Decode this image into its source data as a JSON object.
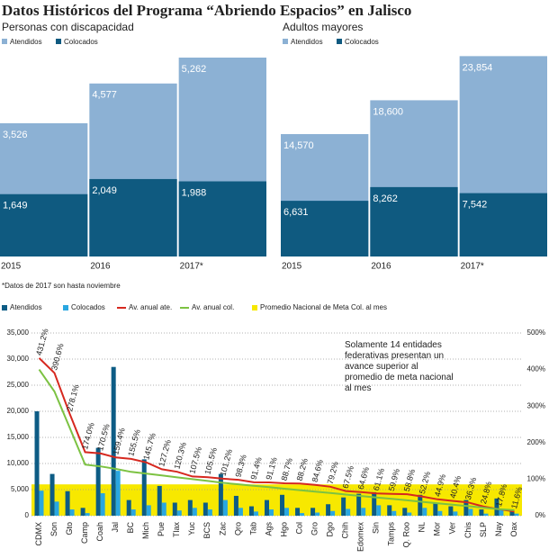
{
  "title": "Datos Históricos del Programa “Abriendo Espacios” en Jalisco",
  "footnote": "*Datos de 2017 son hasta noviembre",
  "chart_data": [
    {
      "type": "bar",
      "title": "Personas con discapacidad",
      "categories": [
        "2015",
        "2016",
        "2017*"
      ],
      "series": [
        {
          "name": "Atendidos",
          "color": "#8cb1d4",
          "values": [
            3526,
            4577,
            5262
          ],
          "value_labels": [
            "3,526",
            "4,577",
            "5,262"
          ]
        },
        {
          "name": "Colocados",
          "color": "#0f5a80",
          "values": [
            1649,
            2049,
            1988
          ],
          "value_labels": [
            "1,649",
            "2,049",
            "1,988"
          ]
        }
      ],
      "ylim": [
        0,
        6000
      ]
    },
    {
      "type": "bar",
      "title": "Adultos mayores",
      "categories": [
        "2015",
        "2016",
        "2017*"
      ],
      "series": [
        {
          "name": "Atendidos",
          "color": "#8cb1d4",
          "values": [
            14570,
            18600,
            23854
          ],
          "value_labels": [
            "14,570",
            "18,600",
            "23,854"
          ]
        },
        {
          "name": "Colocados",
          "color": "#0f5a80",
          "values": [
            6631,
            8262,
            7542
          ],
          "value_labels": [
            "6,631",
            "8,262",
            "7,542"
          ]
        }
      ],
      "ylim": [
        0,
        27000
      ]
    },
    {
      "type": "combo",
      "categories": [
        "CDMX",
        "Son",
        "Gto",
        "Camp",
        "Coah",
        "Jal",
        "BC",
        "Mich",
        "Pue",
        "Tlax",
        "Yuc",
        "BCS",
        "Zac",
        "Qro",
        "Tab",
        "Ags",
        "Hgo",
        "Col",
        "Gro",
        "Dgo",
        "Chih",
        "Edomex",
        "Sin",
        "Tamps",
        "Q. Roo",
        "NL",
        "Mor",
        "Ver",
        "Chis",
        "SLP",
        "Nay",
        "Oax"
      ],
      "series": [
        {
          "name": "Atendidos",
          "color": "#0d5c85",
          "values": [
            20000,
            8000,
            4700,
            1500,
            13000,
            28500,
            3000,
            10800,
            5700,
            2500,
            3000,
            2500,
            8000,
            3800,
            1800,
            3000,
            4000,
            1500,
            1500,
            2200,
            3500,
            4200,
            4500,
            2000,
            1500,
            4000,
            2500,
            1800,
            3000,
            1200,
            3300,
            1200
          ]
        },
        {
          "name": "Colocados",
          "color": "#2aa7e0",
          "values": [
            4800,
            2700,
            1200,
            500,
            4300,
            8600,
            1200,
            2000,
            2500,
            1000,
            1500,
            1200,
            3000,
            1500,
            800,
            1200,
            1500,
            500,
            600,
            900,
            1300,
            1500,
            2000,
            900,
            600,
            1500,
            900,
            800,
            1300,
            400,
            1300,
            400
          ]
        },
        {
          "name": "Av. anual ate.",
          "color": "#d6281f",
          "axis": "y2",
          "values": [
            431.2,
            390.6,
            278.1,
            174.0,
            170.5,
            159.4,
            155.5,
            145.7,
            127.2,
            120.3,
            107.5,
            105.5,
            101.2,
            98.3,
            91.4,
            91.1,
            88.7,
            88.2,
            84.6,
            79.2,
            67.5,
            64.6,
            61.1,
            59.9,
            58.8,
            52.2,
            44.9,
            40.4,
            36.3,
            24.8,
            17.8,
            11.6
          ],
          "value_labels": [
            "431.2%",
            "390.6%",
            "278.1%",
            "174.0%",
            "170.5%",
            "159.4%",
            "155.5%",
            "145.7%",
            "127.2%",
            "120.3%",
            "107.5%",
            "105.5%",
            "101.2%",
            "98.3%",
            "91.4%",
            "91.1%",
            "88.7%",
            "88.2%",
            "84.6%",
            "79.2%",
            "67.5%",
            "64.6%",
            "61.1%",
            "59.9%",
            "58.8%",
            "52.2%",
            "44.9%",
            "40.4%",
            "36.3%",
            "24.8%",
            "17.8%",
            "11.6%"
          ]
        },
        {
          "name": "Av. anual col.",
          "color": "#7cc242",
          "axis": "y2",
          "values": [
            400,
            340,
            240,
            140,
            135,
            128,
            120,
            115,
            110,
            105,
            100,
            95,
            90,
            86,
            82,
            78,
            74,
            70,
            66,
            62,
            58,
            54,
            50,
            46,
            42,
            38,
            34,
            30,
            26,
            22,
            18,
            15
          ]
        }
      ],
      "band": {
        "name": "Promedio Nacional de Meta Col. al mes",
        "color": "#f7e800",
        "value": 6000
      },
      "annotation": "Solamente 14 entidades federativas presentan un avance superior al promedio de meta nacional al mes",
      "ylim": [
        0,
        35000
      ],
      "yticks": [
        0,
        {
          "value": 5000,
          "label": "5,000"
        },
        {
          "value": 10000,
          "label": "10,000"
        },
        {
          "value": 15000,
          "label": "15,000"
        },
        {
          "value": 20000,
          "label": "20,000"
        },
        {
          "value": 25000,
          "label": "25,000"
        },
        {
          "value": 30000,
          "label": "30,000"
        },
        {
          "value": 35000,
          "label": "35,000"
        }
      ],
      "y2lim": [
        0,
        500
      ],
      "y2ticks": [
        {
          "value": 0,
          "label": "0%"
        },
        {
          "value": 100,
          "label": "100%"
        },
        {
          "value": 200,
          "label": "200%"
        },
        {
          "value": 300,
          "label": "300%"
        },
        {
          "value": 400,
          "label": "400%"
        },
        {
          "value": 500,
          "label": "500%"
        }
      ],
      "grid": true
    }
  ]
}
